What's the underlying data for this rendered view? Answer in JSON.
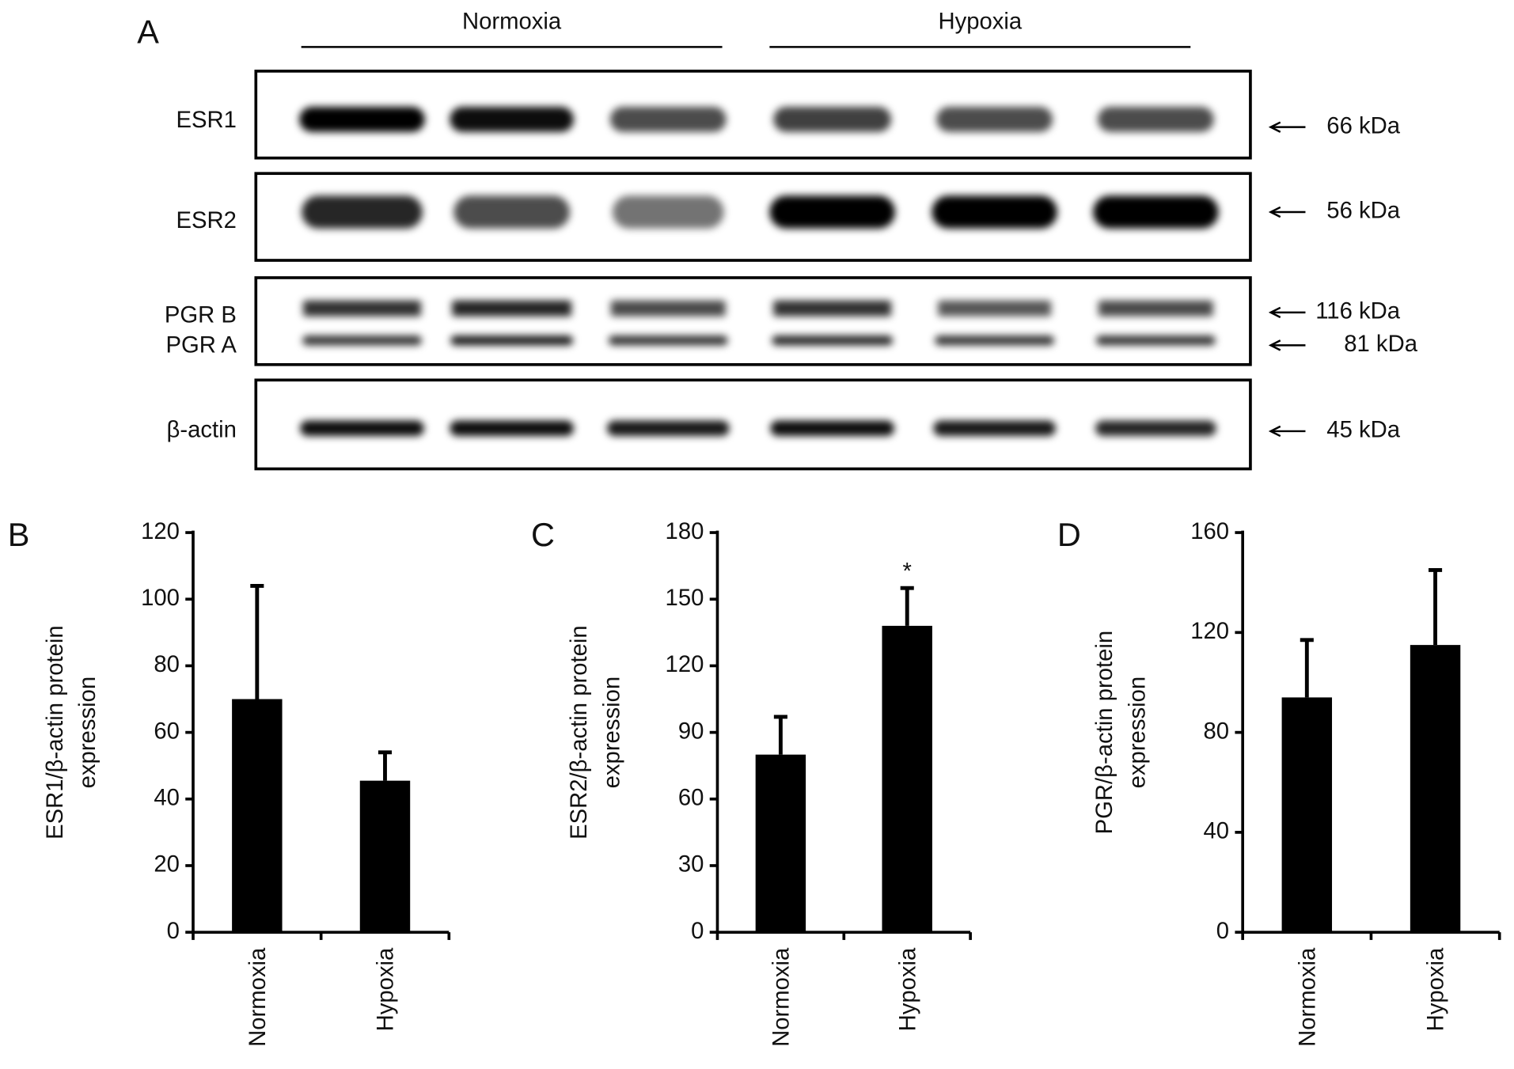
{
  "blot": {
    "panel_label": "A",
    "groups": [
      "Normoxia",
      "Hypoxia"
    ],
    "rows": [
      {
        "label": "ESR1",
        "marker": "66 kDa"
      },
      {
        "label": "ESR2",
        "marker": "56 kDa"
      },
      {
        "label": "PGR B",
        "marker": "116 kDa"
      },
      {
        "label": "PGR A",
        "marker": "81 kDa"
      },
      {
        "label": "β-actin",
        "marker": "45 kDa"
      }
    ]
  },
  "chart_data": [
    {
      "type": "bar",
      "panel_label": "B",
      "ylabel": [
        "ESR1/β-actin protein",
        "expression"
      ],
      "categories": [
        "Normoxia",
        "Hypoxia"
      ],
      "values": [
        70,
        45.5
      ],
      "errors": [
        34,
        8.5
      ],
      "color": "#000000",
      "ylim": [
        0,
        120
      ],
      "yticks": [
        0,
        20,
        40,
        60,
        80,
        100,
        120
      ]
    },
    {
      "type": "bar",
      "panel_label": "C",
      "ylabel": [
        "ESR2/β-actin protein",
        "expression"
      ],
      "categories": [
        "Normoxia",
        "Hypoxia"
      ],
      "values": [
        80,
        138
      ],
      "errors": [
        17,
        17
      ],
      "annotations": [
        "",
        "*"
      ],
      "color": "#000000",
      "ylim": [
        0,
        180
      ],
      "yticks": [
        0,
        30,
        60,
        90,
        120,
        150,
        180
      ]
    },
    {
      "type": "bar",
      "panel_label": "D",
      "ylabel": [
        "PGR/β-actin protein",
        "expression"
      ],
      "categories": [
        "Normoxia",
        "Hypoxia"
      ],
      "values": [
        94,
        115
      ],
      "errors": [
        23,
        30
      ],
      "color": "#000000",
      "ylim": [
        0,
        160
      ],
      "yticks": [
        0,
        40,
        80,
        120,
        160
      ]
    }
  ]
}
